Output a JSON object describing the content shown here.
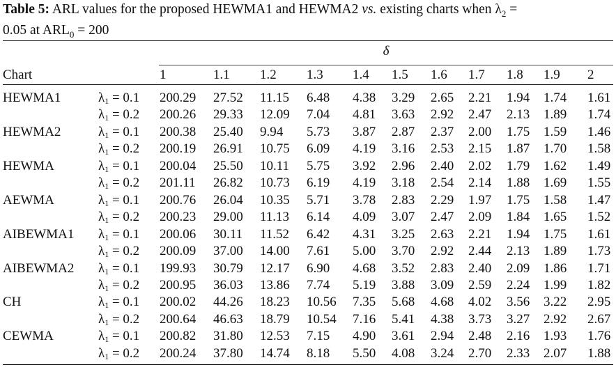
{
  "caption": {
    "label": "Table 5:",
    "text_before_vs": " ARL values for the proposed HEWMA1 and HEWMA2 ",
    "vs": "vs.",
    "text_after_vs": " existing charts when λ",
    "lambda_sub": "2",
    "text_end_line1": " =",
    "line2": "0.05 at ARL",
    "arl_sub": "0",
    "line2_end": " = 200"
  },
  "table": {
    "delta_header": "δ",
    "chart_header": "Chart",
    "columns": [
      "1",
      "1.1",
      "1.2",
      "1.3",
      "1.4",
      "1.5",
      "1.6",
      "1.7",
      "1.8",
      "1.9",
      "2"
    ],
    "lambda_symbol": "λ",
    "lambda_sub": "1",
    "rows": [
      {
        "chart": "HEWMA1",
        "lambda": " = 0.1",
        "values": [
          "200.29",
          "27.52",
          "11.15",
          "6.48",
          "4.38",
          "3.29",
          "2.65",
          "2.21",
          "1.94",
          "1.74",
          "1.61"
        ]
      },
      {
        "chart": "",
        "lambda": " = 0.2",
        "values": [
          "200.26",
          "29.33",
          "12.09",
          "7.04",
          "4.81",
          "3.63",
          "2.92",
          "2.47",
          "2.13",
          "1.89",
          "1.74"
        ]
      },
      {
        "chart": "HEWMA2",
        "lambda": " = 0.1",
        "values": [
          "200.38",
          "25.40",
          "9.94",
          "5.73",
          "3.87",
          "2.87",
          "2.37",
          "2.00",
          "1.75",
          "1.59",
          "1.46"
        ]
      },
      {
        "chart": "",
        "lambda": " = 0.2",
        "values": [
          "200.19",
          "26.91",
          "10.75",
          "6.09",
          "4.19",
          "3.16",
          "2.53",
          "2.15",
          "1.87",
          "1.70",
          "1.58"
        ]
      },
      {
        "chart": "HEWMA",
        "lambda": " = 0.1",
        "values": [
          "200.04",
          "25.50",
          "10.11",
          "5.75",
          "3.92",
          "2.96",
          "2.40",
          "2.02",
          "1.79",
          "1.62",
          "1.49"
        ]
      },
      {
        "chart": "",
        "lambda": " = 0.2",
        "values": [
          "201.11",
          "26.82",
          "10.73",
          "6.19",
          "4.19",
          "3.18",
          "2.54",
          "2.14",
          "1.88",
          "1.69",
          "1.55"
        ]
      },
      {
        "chart": "AEWMA",
        "lambda": " = 0.1",
        "values": [
          "200.76",
          "26.04",
          "10.35",
          "5.71",
          "3.78",
          "2.83",
          "2.29",
          "1.97",
          "1.75",
          "1.58",
          "1.47"
        ]
      },
      {
        "chart": "",
        "lambda": " = 0.2",
        "values": [
          "200.23",
          "29.00",
          "11.13",
          "6.14",
          "4.09",
          "3.07",
          "2.47",
          "2.09",
          "1.84",
          "1.65",
          "1.52"
        ]
      },
      {
        "chart": "AIBEWMA1",
        "lambda": " = 0.1",
        "values": [
          "200.06",
          "30.11",
          "11.52",
          "6.42",
          "4.31",
          "3.25",
          "2.63",
          "2.21",
          "1.94",
          "1.75",
          "1.61"
        ]
      },
      {
        "chart": "",
        "lambda": " = 0.2",
        "values": [
          "200.09",
          "37.00",
          "14.00",
          "7.61",
          "5.00",
          "3.70",
          "2.92",
          "2.44",
          "2.13",
          "1.89",
          "1.73"
        ]
      },
      {
        "chart": "AIBEWMA2",
        "lambda": " = 0.1",
        "values": [
          "199.93",
          "30.79",
          "12.17",
          "6.90",
          "4.68",
          "3.52",
          "2.83",
          "2.40",
          "2.09",
          "1.86",
          "1.71"
        ]
      },
      {
        "chart": "",
        "lambda": " = 0.2",
        "values": [
          "200.95",
          "36.03",
          "13.86",
          "7.74",
          "5.19",
          "3.88",
          "3.09",
          "2.59",
          "2.24",
          "1.99",
          "1.82"
        ]
      },
      {
        "chart": "CH",
        "lambda": " = 0.1",
        "values": [
          "200.02",
          "44.26",
          "18.23",
          "10.56",
          "7.35",
          "5.68",
          "4.68",
          "4.02",
          "3.56",
          "3.22",
          "2.95"
        ]
      },
      {
        "chart": "",
        "lambda": " = 0.2",
        "values": [
          "200.64",
          "46.63",
          "18.79",
          "10.54",
          "7.16",
          "5.41",
          "4.38",
          "3.73",
          "3.27",
          "2.92",
          "2.67"
        ]
      },
      {
        "chart": "CEWMA",
        "lambda": " = 0.1",
        "values": [
          "200.82",
          "31.80",
          "12.53",
          "7.15",
          "4.90",
          "3.61",
          "2.94",
          "2.48",
          "2.16",
          "1.93",
          "1.76"
        ]
      },
      {
        "chart": "",
        "lambda": " = 0.2",
        "values": [
          "200.24",
          "37.80",
          "14.74",
          "8.18",
          "5.50",
          "4.08",
          "3.24",
          "2.70",
          "2.33",
          "2.07",
          "1.88"
        ]
      }
    ]
  }
}
